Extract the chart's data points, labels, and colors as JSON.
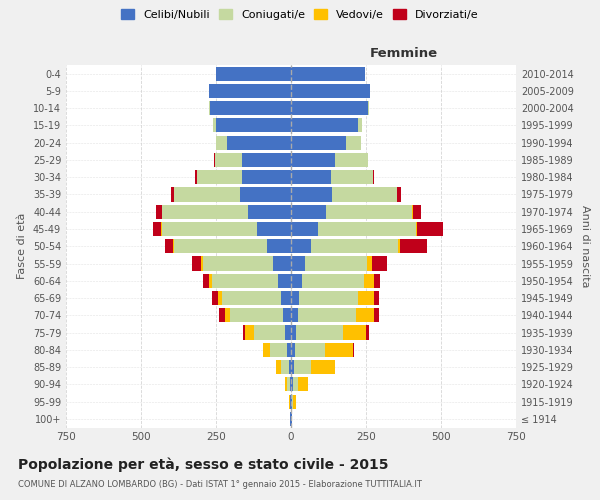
{
  "age_groups": [
    "100+",
    "95-99",
    "90-94",
    "85-89",
    "80-84",
    "75-79",
    "70-74",
    "65-69",
    "60-64",
    "55-59",
    "50-54",
    "45-49",
    "40-44",
    "35-39",
    "30-34",
    "25-29",
    "20-24",
    "15-19",
    "10-14",
    "5-9",
    "0-4"
  ],
  "birth_years": [
    "≤ 1914",
    "1915-1919",
    "1920-1924",
    "1925-1929",
    "1930-1934",
    "1935-1939",
    "1940-1944",
    "1945-1949",
    "1950-1954",
    "1955-1959",
    "1960-1964",
    "1965-1969",
    "1970-1974",
    "1975-1979",
    "1980-1984",
    "1985-1989",
    "1990-1994",
    "1995-1999",
    "2000-2004",
    "2005-2009",
    "2010-2014"
  ],
  "male": {
    "celibe": [
      2,
      3,
      5,
      8,
      15,
      20,
      28,
      35,
      45,
      60,
      80,
      115,
      145,
      170,
      165,
      165,
      215,
      250,
      270,
      275,
      250
    ],
    "coniugato": [
      0,
      2,
      8,
      25,
      55,
      105,
      175,
      195,
      220,
      235,
      310,
      315,
      285,
      220,
      150,
      90,
      35,
      10,
      2,
      0,
      0
    ],
    "vedovo": [
      0,
      2,
      8,
      18,
      22,
      28,
      18,
      14,
      9,
      5,
      3,
      2,
      1,
      0,
      0,
      0,
      0,
      0,
      0,
      0,
      0
    ],
    "divorziato": [
      0,
      0,
      0,
      0,
      0,
      8,
      18,
      18,
      18,
      30,
      28,
      28,
      18,
      10,
      5,
      2,
      0,
      0,
      0,
      0,
      0
    ]
  },
  "female": {
    "nubile": [
      2,
      3,
      5,
      10,
      14,
      18,
      22,
      28,
      38,
      48,
      65,
      90,
      118,
      138,
      132,
      148,
      182,
      222,
      258,
      262,
      248
    ],
    "coniugata": [
      0,
      4,
      18,
      55,
      100,
      155,
      195,
      195,
      205,
      205,
      290,
      325,
      285,
      215,
      140,
      108,
      50,
      14,
      2,
      0,
      0
    ],
    "vedova": [
      2,
      8,
      32,
      82,
      92,
      78,
      58,
      52,
      32,
      18,
      9,
      4,
      2,
      0,
      0,
      0,
      0,
      0,
      0,
      0,
      0
    ],
    "divorziata": [
      0,
      0,
      0,
      0,
      4,
      8,
      18,
      18,
      22,
      48,
      88,
      88,
      28,
      14,
      4,
      2,
      0,
      0,
      0,
      0,
      0
    ]
  },
  "color_celibe": "#4472c4",
  "color_coniugato": "#c5d9a0",
  "color_vedovo": "#ffc000",
  "color_divorziato": "#c0001a",
  "xlim": 750,
  "title": "Popolazione per età, sesso e stato civile - 2015",
  "subtitle": "COMUNE DI ALZANO LOMBARDO (BG) - Dati ISTAT 1° gennaio 2015 - Elaborazione TUTTITALIA.IT",
  "ylabel_left": "Fasce di età",
  "ylabel_right": "Anni di nascita",
  "xlabel_female": "Femmine",
  "bg_color": "#f0f0f0",
  "plot_bg": "#ffffff"
}
